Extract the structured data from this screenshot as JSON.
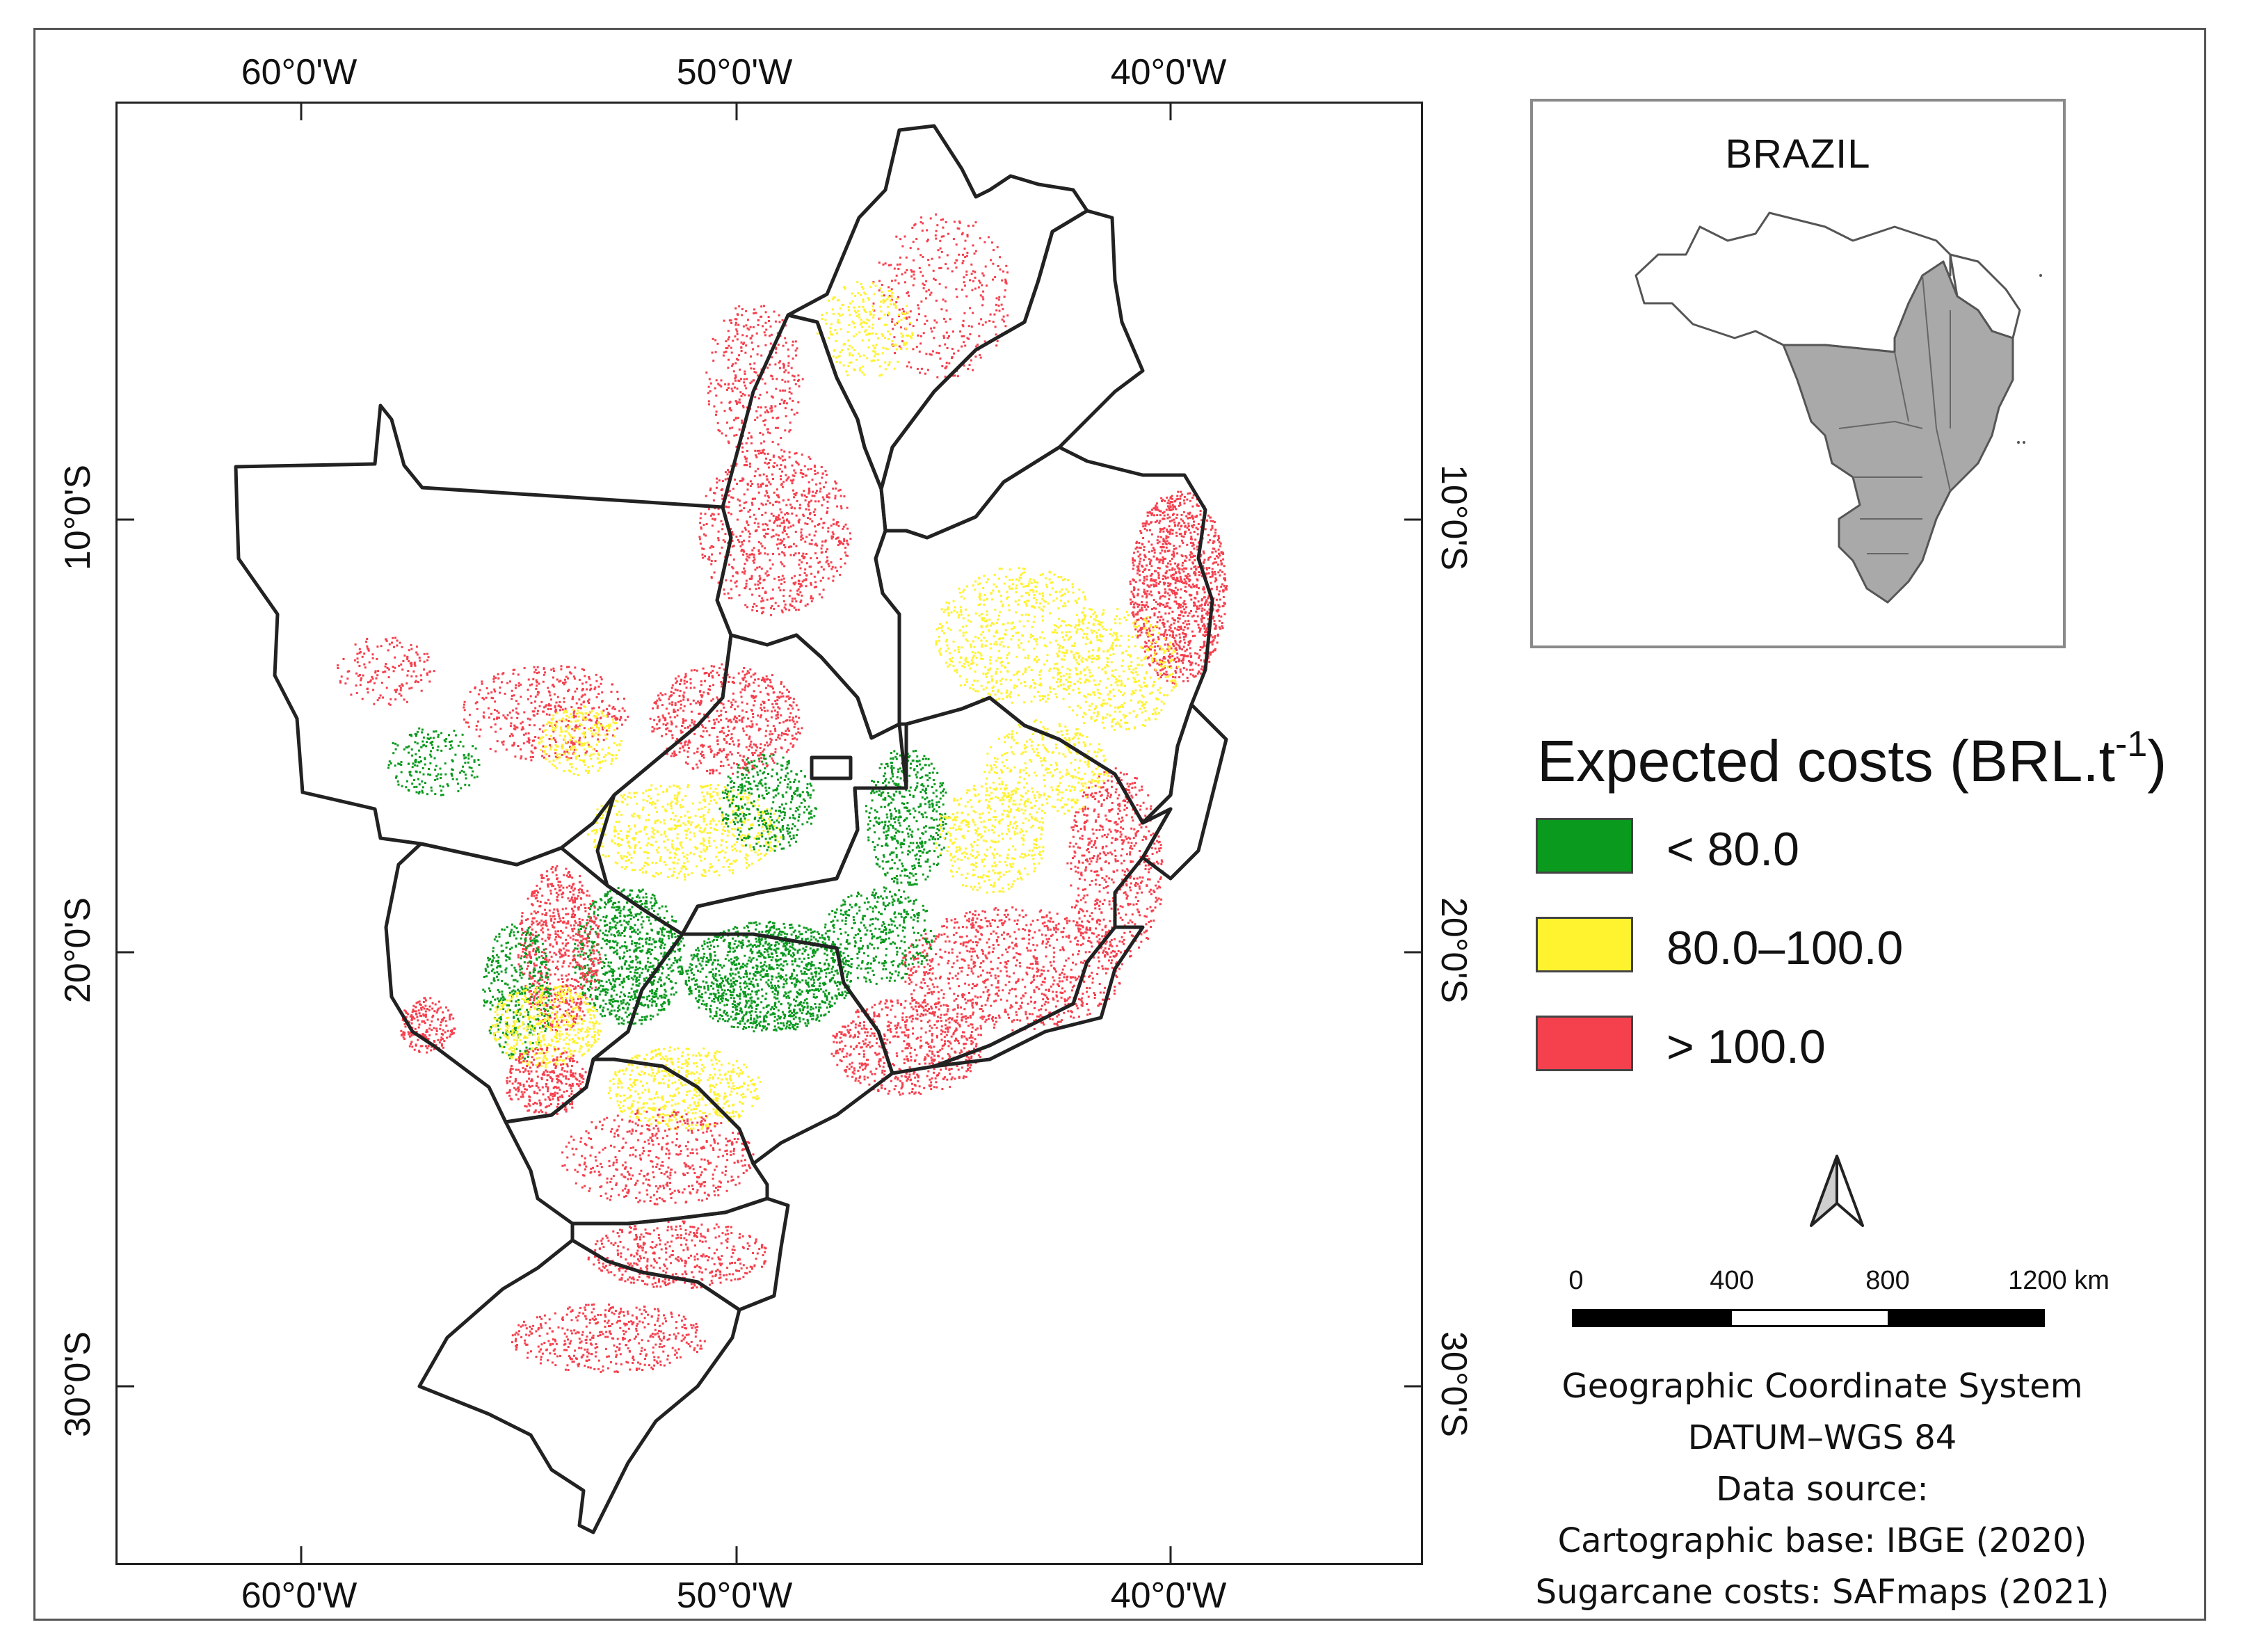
{
  "map": {
    "lon_labels": [
      "60°0'W",
      "50°0'W",
      "40°0'W"
    ],
    "lat_labels": [
      "10°0'S",
      "20°0'S",
      "30°0'S"
    ],
    "cost_class_colors": {
      "low": "#0a9a1e",
      "mid": "#fff22e",
      "high": "#f5404e"
    },
    "border_color": "#222222"
  },
  "inset": {
    "title": "BRAZIL",
    "highlight_color": "#a9a9a9",
    "outline_color": "#555555"
  },
  "legend": {
    "title": "Expected costs (BRL.t",
    "title_unit_sup": "-1",
    "title_close": ")",
    "items": [
      {
        "label": "< 80.0",
        "color": "#0a9a1e"
      },
      {
        "label": "80.0–100.0",
        "color": "#fff22e"
      },
      {
        "label": "> 100.0",
        "color": "#f5404e"
      }
    ]
  },
  "scale_bar": {
    "ticks": [
      "0",
      "400",
      "800",
      "1200 km"
    ]
  },
  "credits": {
    "lines": [
      "Geographic Coordinate System",
      "DATUM–WGS 84",
      "Data source:",
      "Cartographic base: IBGE (2020)",
      "Sugarcane costs: SAFmaps (2021)"
    ]
  }
}
